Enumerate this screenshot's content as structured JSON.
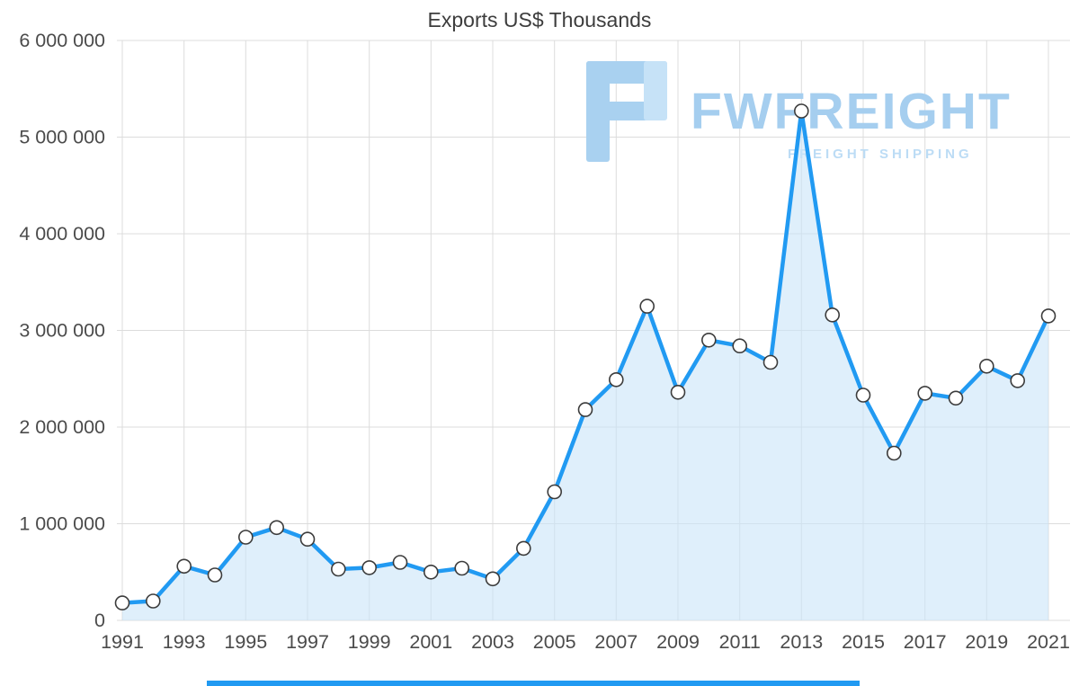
{
  "watermark": {
    "brand": "FWFREIGHT",
    "tagline": "FREIGHT SHIPPING"
  },
  "chart_data": {
    "type": "area",
    "title": "Exports US$ Thousands",
    "xlabel": "",
    "ylabel": "",
    "legend": "none",
    "grid": true,
    "x": [
      1991,
      1992,
      1993,
      1994,
      1995,
      1996,
      1997,
      1998,
      1999,
      2000,
      2001,
      2002,
      2003,
      2004,
      2005,
      2006,
      2007,
      2008,
      2009,
      2010,
      2011,
      2012,
      2013,
      2014,
      2015,
      2016,
      2017,
      2018,
      2019,
      2020,
      2021
    ],
    "series": [
      {
        "name": "Exports US$ Thousands",
        "values": [
          180000,
          200000,
          560000,
          470000,
          860000,
          960000,
          840000,
          530000,
          545000,
          600000,
          500000,
          540000,
          430000,
          745000,
          1330000,
          2180000,
          2490000,
          3250000,
          2360000,
          2900000,
          2840000,
          2670000,
          5270000,
          3160000,
          2330000,
          1730000,
          2350000,
          2300000,
          2630000,
          2480000,
          3150000
        ]
      }
    ],
    "values": [
      180000,
      200000,
      560000,
      470000,
      860000,
      960000,
      840000,
      530000,
      545000,
      600000,
      500000,
      540000,
      430000,
      745000,
      1330000,
      2180000,
      2490000,
      3250000,
      2360000,
      2900000,
      2840000,
      2670000,
      5270000,
      3160000,
      2330000,
      1730000,
      2350000,
      2300000,
      2630000,
      2480000,
      3150000
    ],
    "ylim": [
      0,
      6000000
    ],
    "y_ticks": [
      0,
      1000000,
      2000000,
      3000000,
      4000000,
      5000000,
      6000000
    ],
    "y_tick_labels": [
      "0",
      "1 000 000",
      "2 000 000",
      "3 000 000",
      "4 000 000",
      "5 000 000",
      "6 000 000"
    ],
    "x_tick_step": 2,
    "colors": {
      "line": "#219af2",
      "fill": "#c9e5f9",
      "fill_opacity": 0.6,
      "marker_fill": "#ffffff",
      "marker_stroke": "#3c3c3c",
      "grid": "#dcdcdc",
      "axis_text": "#4b4b4b",
      "title_text": "#3d3d3d",
      "watermark": "#a5ceef",
      "watermark_light": "#c6e2f7",
      "accent": "#219af2"
    }
  }
}
